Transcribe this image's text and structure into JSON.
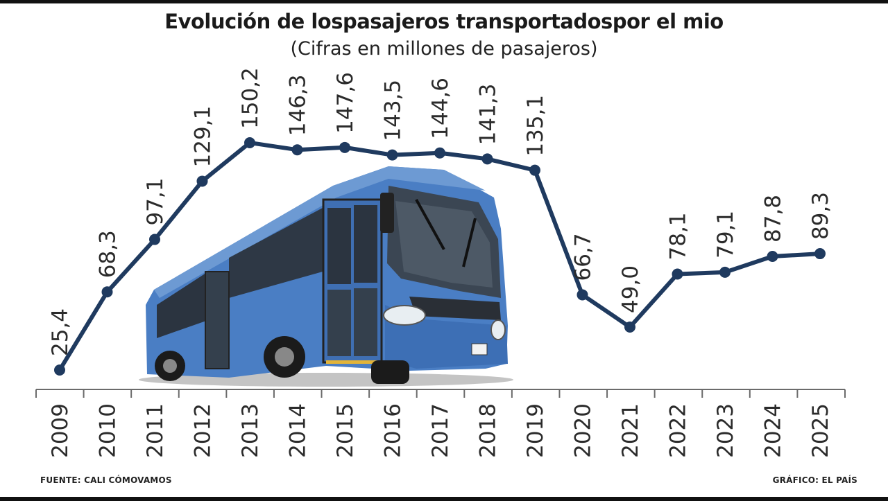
{
  "header": {
    "title": "Evolución de lospasajeros transportadospor el mio",
    "subtitle": "(Cifras en millones de pasajeros)"
  },
  "footer": {
    "source": "FUENTE: CALI CÓMOVAMOS",
    "credit": "GRÁFICO: EL PAÍS"
  },
  "colors": {
    "line": "#1f3a5f",
    "bus_body": "#4a7ec4",
    "text": "#2b2b2b"
  },
  "chart_data": {
    "type": "line",
    "title": "Evolución de lospasajeros transportadospor el mio",
    "subtitle": "(Cifras en millones de pasajeros)",
    "categories": [
      "2009",
      "2010",
      "2011",
      "2012",
      "2013",
      "2014",
      "2015",
      "2016",
      "2017",
      "2018",
      "2019",
      "2020",
      "2021",
      "2022",
      "2023",
      "2024",
      "2025"
    ],
    "values": [
      25.4,
      68.3,
      97.1,
      129.1,
      150.2,
      146.3,
      147.6,
      143.5,
      144.6,
      141.3,
      135.1,
      66.7,
      49.0,
      78.1,
      79.1,
      87.8,
      89.3
    ],
    "value_labels": [
      "25,4",
      "68,3",
      "97,1",
      "129,1",
      "150,2",
      "146,3",
      "147,6",
      "143,5",
      "144,6",
      "141,3",
      "135,1",
      "66,7",
      "49,0",
      "78,1",
      "79,1",
      "87,8",
      "89,3"
    ],
    "grid": false,
    "illustration": "blue MIO bus"
  }
}
